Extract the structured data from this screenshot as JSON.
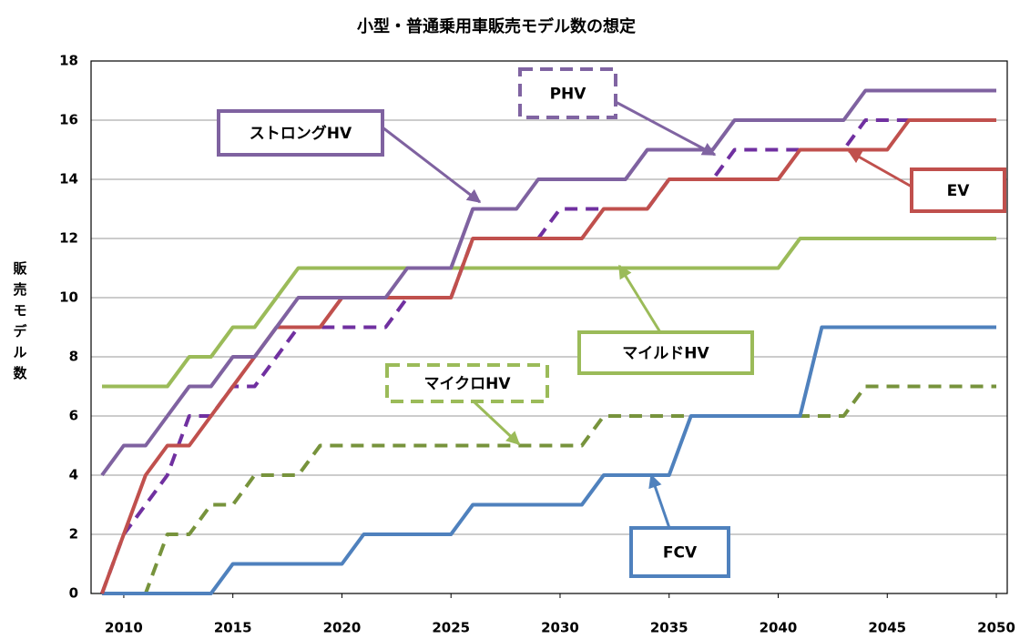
{
  "chart_data": {
    "type": "line",
    "title": "小型・普通乗用車販売モデル数の想定",
    "y_label": "販売モデル数",
    "x": [
      2009,
      2010,
      2011,
      2012,
      2013,
      2014,
      2015,
      2016,
      2017,
      2018,
      2019,
      2020,
      2021,
      2022,
      2023,
      2024,
      2025,
      2026,
      2027,
      2028,
      2029,
      2030,
      2031,
      2032,
      2033,
      2034,
      2035,
      2036,
      2037,
      2038,
      2039,
      2040,
      2041,
      2042,
      2043,
      2044,
      2045,
      2046,
      2047,
      2048,
      2049,
      2050
    ],
    "xlim": [
      2008.5,
      2050.5
    ],
    "xticks": [
      2010,
      2015,
      2020,
      2025,
      2030,
      2035,
      2040,
      2045,
      2050
    ],
    "ylim": [
      0,
      18
    ],
    "yticks": [
      0,
      2,
      4,
      6,
      8,
      10,
      12,
      14,
      16,
      18
    ],
    "grid": true,
    "series": [
      {
        "name": "ストロングHV",
        "color": "#7f62a0",
        "dashed": false,
        "values": [
          4,
          5,
          5,
          6,
          7,
          7,
          8,
          8,
          9,
          10,
          10,
          10,
          10,
          10,
          11,
          11,
          11,
          13,
          13,
          13,
          14,
          14,
          14,
          14,
          14,
          15,
          15,
          15,
          15,
          16,
          16,
          16,
          16,
          16,
          16,
          17,
          17,
          17,
          17,
          17,
          17,
          17
        ]
      },
      {
        "name": "PHV",
        "color": "#7030a0",
        "dashed": true,
        "values": [
          0,
          2,
          3,
          4,
          6,
          6,
          7,
          7,
          8,
          9,
          9,
          9,
          9,
          9,
          10,
          10,
          10,
          12,
          12,
          12,
          12,
          13,
          13,
          13,
          13,
          13,
          14,
          14,
          14,
          15,
          15,
          15,
          15,
          15,
          15,
          16,
          16,
          16,
          16,
          16,
          16,
          16
        ]
      },
      {
        "name": "EV",
        "color": "#c0504d",
        "dashed": false,
        "values": [
          0,
          2,
          4,
          5,
          5,
          6,
          7,
          8,
          9,
          9,
          9,
          10,
          10,
          10,
          10,
          10,
          10,
          12,
          12,
          12,
          12,
          12,
          12,
          13,
          13,
          13,
          14,
          14,
          14,
          14,
          14,
          14,
          15,
          15,
          15,
          15,
          15,
          16,
          16,
          16,
          16,
          16
        ]
      },
      {
        "name": "マイルドHV",
        "color": "#9bbb59",
        "dashed": false,
        "values": [
          7,
          7,
          7,
          7,
          8,
          8,
          9,
          9,
          10,
          11,
          11,
          11,
          11,
          11,
          11,
          11,
          11,
          11,
          11,
          11,
          11,
          11,
          11,
          11,
          11,
          11,
          11,
          11,
          11,
          11,
          11,
          11,
          12,
          12,
          12,
          12,
          12,
          12,
          12,
          12,
          12,
          12
        ]
      },
      {
        "name": "マイクロHV",
        "color": "#77933c",
        "dashed": true,
        "values": [
          0,
          0,
          0,
          2,
          2,
          3,
          3,
          4,
          4,
          4,
          5,
          5,
          5,
          5,
          5,
          5,
          5,
          5,
          5,
          5,
          5,
          5,
          5,
          6,
          6,
          6,
          6,
          6,
          6,
          6,
          6,
          6,
          6,
          6,
          6,
          7,
          7,
          7,
          7,
          7,
          7,
          7
        ]
      },
      {
        "name": "FCV",
        "color": "#4f81bd",
        "dashed": false,
        "values": [
          0,
          0,
          0,
          0,
          0,
          0,
          1,
          1,
          1,
          1,
          1,
          1,
          2,
          2,
          2,
          2,
          2,
          3,
          3,
          3,
          3,
          3,
          3,
          4,
          4,
          4,
          4,
          6,
          6,
          6,
          6,
          6,
          6,
          9,
          9,
          9,
          9,
          9,
          9,
          9,
          9,
          9
        ]
      }
    ]
  }
}
